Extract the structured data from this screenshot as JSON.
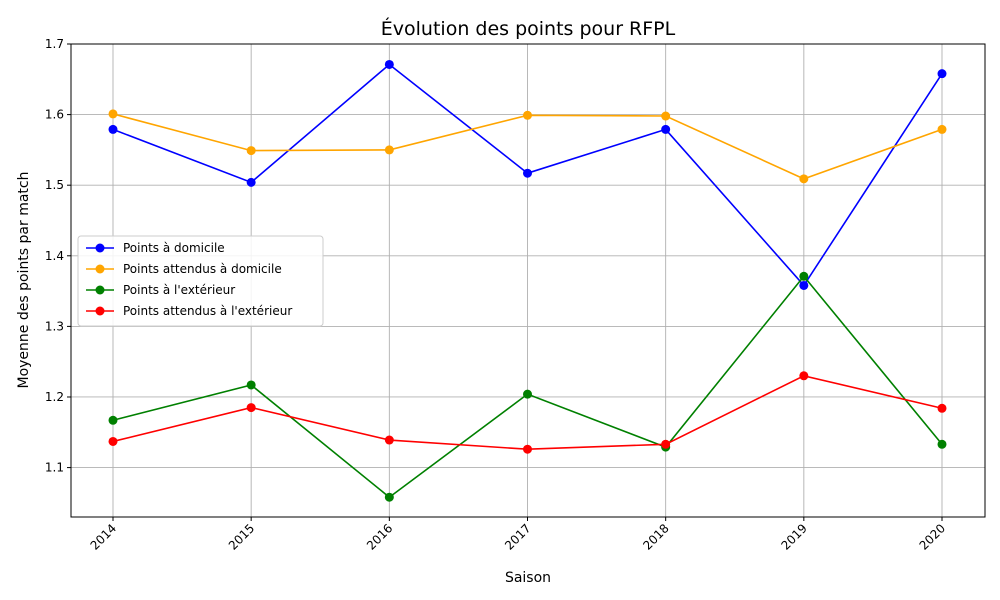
{
  "chart_data": {
    "type": "line",
    "title": "Évolution des points pour RFPL",
    "xlabel": "Saison",
    "ylabel": "Moyenne des points par match",
    "categories": [
      "2014",
      "2015",
      "2016",
      "2017",
      "2018",
      "2019",
      "2020"
    ],
    "yticks": [
      "1.1",
      "1.2",
      "1.3",
      "1.4",
      "1.5",
      "1.6",
      "1.7"
    ],
    "ylim": [
      1.03,
      1.7
    ],
    "grid": true,
    "legend_position": "center-left",
    "series": [
      {
        "name": "Points à domicile",
        "color": "#0000ff",
        "values": [
          1.579,
          1.504,
          1.671,
          1.517,
          1.579,
          1.358,
          1.658
        ]
      },
      {
        "name": "Points attendus à domicile",
        "color": "#ffa500",
        "values": [
          1.601,
          1.549,
          1.55,
          1.599,
          1.598,
          1.509,
          1.579
        ]
      },
      {
        "name": "Points à l'extérieur",
        "color": "#008000",
        "values": [
          1.167,
          1.217,
          1.058,
          1.204,
          1.129,
          1.371,
          1.133
        ]
      },
      {
        "name": "Points attendus à l'extérieur",
        "color": "#ff0000",
        "values": [
          1.137,
          1.185,
          1.139,
          1.126,
          1.133,
          1.23,
          1.184
        ]
      }
    ]
  }
}
